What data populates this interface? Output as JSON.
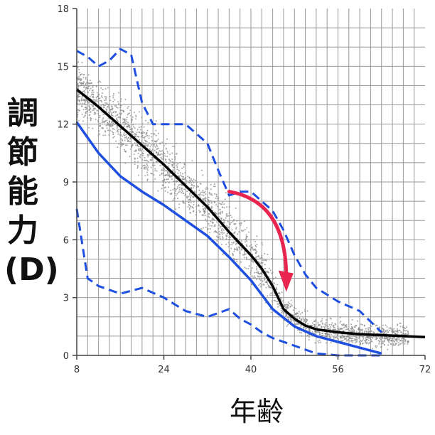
{
  "chart_data": {
    "type": "line",
    "title": "",
    "xlabel": "年齢",
    "ylabel": "調節能力 (D)",
    "xlim": [
      8,
      72
    ],
    "ylim": [
      0,
      18
    ],
    "xticks": [
      "8",
      "24",
      "40",
      "56",
      "72"
    ],
    "yticks": [
      "0",
      "3",
      "6",
      "9",
      "12",
      "15",
      "18"
    ],
    "grid": true,
    "colors": {
      "scatter": "#888888",
      "median": "#000000",
      "lower_limit": "#1f4fe0",
      "envelope": "#1f4fe0",
      "arrow": "#e8254e",
      "grid": "#999999"
    },
    "series": [
      {
        "style": "solid",
        "color": "#000000",
        "x": [
          8,
          12,
          16,
          20,
          24,
          28,
          32,
          36,
          40,
          42,
          44,
          46,
          48,
          50,
          52,
          56,
          60,
          64,
          68,
          72
        ],
        "y": [
          13.8,
          12.9,
          11.9,
          10.9,
          9.9,
          8.8,
          7.7,
          6.4,
          5.2,
          4.5,
          3.6,
          2.4,
          1.9,
          1.55,
          1.35,
          1.2,
          1.1,
          1.05,
          1.0,
          0.95
        ]
      },
      {
        "style": "solid",
        "color": "#1f4fe0",
        "x": [
          8,
          12,
          16,
          20,
          24,
          28,
          32,
          36,
          40,
          44,
          48,
          52,
          56,
          60,
          64
        ],
        "y": [
          12.1,
          10.5,
          9.3,
          8.5,
          7.8,
          7.0,
          6.2,
          5.1,
          3.9,
          2.4,
          1.5,
          1.0,
          0.7,
          0.4,
          0.1
        ]
      },
      {
        "style": "dashed",
        "color": "#1f4fe0",
        "x": [
          8,
          10,
          12,
          14,
          16,
          18,
          20,
          22,
          24,
          28,
          32,
          34,
          36,
          38,
          40,
          42,
          44,
          46,
          48,
          50,
          52,
          56,
          60,
          64
        ],
        "y": [
          15.8,
          15.5,
          15.0,
          15.3,
          15.9,
          15.6,
          13.1,
          12.0,
          12.0,
          12.0,
          11.0,
          9.6,
          8.3,
          8.5,
          8.5,
          8.0,
          7.5,
          6.5,
          5.2,
          4.2,
          3.5,
          2.8,
          2.3,
          1.2
        ]
      },
      {
        "style": "dashed",
        "color": "#1f4fe0",
        "x": [
          8,
          10,
          12,
          16,
          20,
          24,
          28,
          32,
          34,
          36,
          38,
          40,
          42,
          44,
          48,
          52,
          56,
          60,
          64
        ],
        "y": [
          7.6,
          4.0,
          3.6,
          3.2,
          3.5,
          3.0,
          2.3,
          2.0,
          2.2,
          2.4,
          1.9,
          1.6,
          1.2,
          0.9,
          0.5,
          0.1,
          0.0,
          0.0,
          0.0
        ]
      }
    ],
    "annotation_arrow": {
      "color": "#e8254e",
      "from": [
        36,
        8.5
      ],
      "to": [
        46.5,
        3.3
      ]
    }
  }
}
